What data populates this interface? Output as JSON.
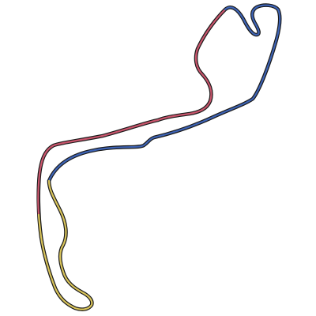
{
  "track": {
    "outline_color": "#1a1a1a",
    "sectors": [
      {
        "id": "sector-1",
        "color": "#c9556c"
      },
      {
        "id": "sector-2",
        "color": "#3d63b5"
      },
      {
        "id": "sector-3",
        "color": "#d9c45a"
      }
    ]
  }
}
